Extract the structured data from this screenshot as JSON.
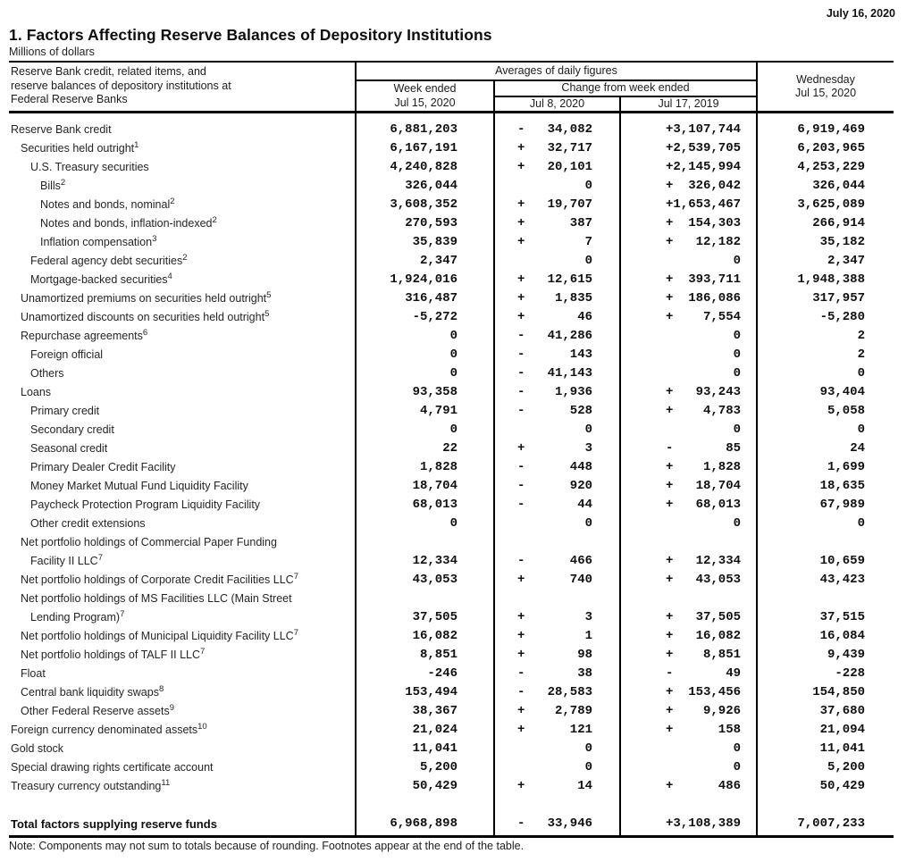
{
  "release_date": "July 16, 2020",
  "title": "1. Factors Affecting Reserve Balances of Depository Institutions",
  "subtitle": "Millions of dollars",
  "note": "Note: Components may not sum to totals because of rounding. Footnotes appear at the end of the table.",
  "table": {
    "stub_header": [
      "Reserve Bank credit, related items, and",
      "reserve balances of depository institutions at",
      "Federal Reserve Banks"
    ],
    "col_groups": {
      "averages": "Averages of daily figures",
      "change": "Change from week ended"
    },
    "columns": {
      "week_ended": [
        "Week ended",
        "Jul 15, 2020"
      ],
      "change_1": "Jul 8, 2020",
      "change_2": "Jul 17, 2019",
      "wednesday": [
        "Wednesday",
        "Jul 15, 2020"
      ]
    },
    "rows": [
      {
        "label": "Reserve Bank credit",
        "indent": 0,
        "week": "6,881,203",
        "chg1": "-   34,082",
        "chg2": "+3,107,744",
        "wed": "6,919,469"
      },
      {
        "label": "Securities held outright",
        "sup": "1",
        "indent": 1,
        "week": "6,167,191",
        "chg1": "+   32,717",
        "chg2": "+2,539,705",
        "wed": "6,203,965"
      },
      {
        "label": "U.S. Treasury securities",
        "indent": 2,
        "week": "4,240,828",
        "chg1": "+   20,101",
        "chg2": "+2,145,994",
        "wed": "4,253,229"
      },
      {
        "label": "Bills",
        "sup": "2",
        "indent": 3,
        "week": "326,044",
        "chg1": "0",
        "chg2": "+  326,042",
        "wed": "326,044"
      },
      {
        "label": "Notes and bonds, nominal",
        "sup": "2",
        "indent": 3,
        "week": "3,608,352",
        "chg1": "+   19,707",
        "chg2": "+1,653,467",
        "wed": "3,625,089"
      },
      {
        "label": "Notes and bonds, inflation-indexed",
        "sup": "2",
        "indent": 3,
        "week": "270,593",
        "chg1": "+      387",
        "chg2": "+  154,303",
        "wed": "266,914"
      },
      {
        "label": "Inflation compensation",
        "sup": "3",
        "indent": 3,
        "week": "35,839",
        "chg1": "+        7",
        "chg2": "+   12,182",
        "wed": "35,182"
      },
      {
        "label": "Federal agency debt securities",
        "sup": "2",
        "indent": 2,
        "week": "2,347",
        "chg1": "0",
        "chg2": "0",
        "wed": "2,347"
      },
      {
        "label": "Mortgage-backed securities",
        "sup": "4",
        "indent": 2,
        "week": "1,924,016",
        "chg1": "+   12,615",
        "chg2": "+  393,711",
        "wed": "1,948,388"
      },
      {
        "label": "Unamortized premiums on securities held outright",
        "sup": "5",
        "indent": 1,
        "week": "316,487",
        "chg1": "+    1,835",
        "chg2": "+  186,086",
        "wed": "317,957"
      },
      {
        "label": "Unamortized discounts on securities held outright",
        "sup": "5",
        "indent": 1,
        "week": "-5,272",
        "chg1": "+       46",
        "chg2": "+    7,554",
        "wed": "-5,280"
      },
      {
        "label": "Repurchase agreements",
        "sup": "6",
        "indent": 1,
        "week": "0",
        "chg1": "-   41,286",
        "chg2": "0",
        "wed": "2"
      },
      {
        "label": "Foreign official",
        "indent": 2,
        "week": "0",
        "chg1": "-      143",
        "chg2": "0",
        "wed": "2"
      },
      {
        "label": "Others",
        "indent": 2,
        "week": "0",
        "chg1": "-   41,143",
        "chg2": "0",
        "wed": "0"
      },
      {
        "label": "Loans",
        "indent": 1,
        "week": "93,358",
        "chg1": "-    1,936",
        "chg2": "+   93,243",
        "wed": "93,404"
      },
      {
        "label": "Primary credit",
        "indent": 2,
        "week": "4,791",
        "chg1": "-      528",
        "chg2": "+    4,783",
        "wed": "5,058"
      },
      {
        "label": "Secondary credit",
        "indent": 2,
        "week": "0",
        "chg1": "0",
        "chg2": "0",
        "wed": "0"
      },
      {
        "label": "Seasonal credit",
        "indent": 2,
        "week": "22",
        "chg1": "+        3",
        "chg2": "-       85",
        "wed": "24"
      },
      {
        "label": "Primary Dealer Credit Facility",
        "indent": 2,
        "week": "1,828",
        "chg1": "-      448",
        "chg2": "+    1,828",
        "wed": "1,699"
      },
      {
        "label": "Money Market Mutual Fund Liquidity Facility",
        "indent": 2,
        "week": "18,704",
        "chg1": "-      920",
        "chg2": "+   18,704",
        "wed": "18,635"
      },
      {
        "label": "Paycheck Protection Program Liquidity Facility",
        "indent": 2,
        "week": "68,013",
        "chg1": "-       44",
        "chg2": "+   68,013",
        "wed": "67,989"
      },
      {
        "label": "Other credit extensions",
        "indent": 2,
        "week": "0",
        "chg1": "0",
        "chg2": "0",
        "wed": "0"
      },
      {
        "label": "Net portfolio holdings of Commercial Paper Funding",
        "label2": "Facility II LLC",
        "sup": "7",
        "indent": 1,
        "week": "12,334",
        "chg1": "-      466",
        "chg2": "+   12,334",
        "wed": "10,659"
      },
      {
        "label": "Net portfolio holdings of Corporate Credit Facilities LLC",
        "sup": "7",
        "indent": 1,
        "week": "43,053",
        "chg1": "+      740",
        "chg2": "+   43,053",
        "wed": "43,423"
      },
      {
        "label": "Net portfolio holdings of MS Facilities LLC (Main Street",
        "label2": "Lending Program)",
        "sup": "7",
        "indent": 1,
        "week": "37,505",
        "chg1": "+        3",
        "chg2": "+   37,505",
        "wed": "37,515"
      },
      {
        "label": "Net portfolio holdings of Municipal Liquidity Facility LLC",
        "sup": "7",
        "indent": 1,
        "week": "16,082",
        "chg1": "+        1",
        "chg2": "+   16,082",
        "wed": "16,084"
      },
      {
        "label": "Net portfolio holdings of TALF II LLC",
        "sup": "7",
        "indent": 1,
        "week": "8,851",
        "chg1": "+       98",
        "chg2": "+    8,851",
        "wed": "9,439"
      },
      {
        "label": "Float",
        "indent": 1,
        "week": "-246",
        "chg1": "-       38",
        "chg2": "-       49",
        "wed": "-228"
      },
      {
        "label": "Central bank liquidity swaps",
        "sup": "8",
        "indent": 1,
        "week": "153,494",
        "chg1": "-   28,583",
        "chg2": "+  153,456",
        "wed": "154,850"
      },
      {
        "label": "Other Federal Reserve assets",
        "sup": "9",
        "indent": 1,
        "week": "38,367",
        "chg1": "+    2,789",
        "chg2": "+    9,926",
        "wed": "37,680"
      },
      {
        "label": "Foreign currency denominated assets",
        "sup": "10",
        "indent": 0,
        "week": "21,024",
        "chg1": "+      121",
        "chg2": "+      158",
        "wed": "21,094"
      },
      {
        "label": "Gold stock",
        "indent": 0,
        "week": "11,041",
        "chg1": "0",
        "chg2": "0",
        "wed": "11,041"
      },
      {
        "label": "Special drawing rights certificate account",
        "indent": 0,
        "week": "5,200",
        "chg1": "0",
        "chg2": "0",
        "wed": "5,200"
      },
      {
        "label": "Treasury currency outstanding",
        "sup": "11",
        "indent": 0,
        "week": "50,429",
        "chg1": "+       14",
        "chg2": "+      486",
        "wed": "50,429"
      },
      {
        "type": "spacer"
      },
      {
        "label": "Total factors supplying reserve funds",
        "indent": 0,
        "bold": true,
        "week": "6,968,898",
        "chg1": "-   33,946",
        "chg2": "+3,108,389",
        "wed": "7,007,233"
      }
    ]
  }
}
